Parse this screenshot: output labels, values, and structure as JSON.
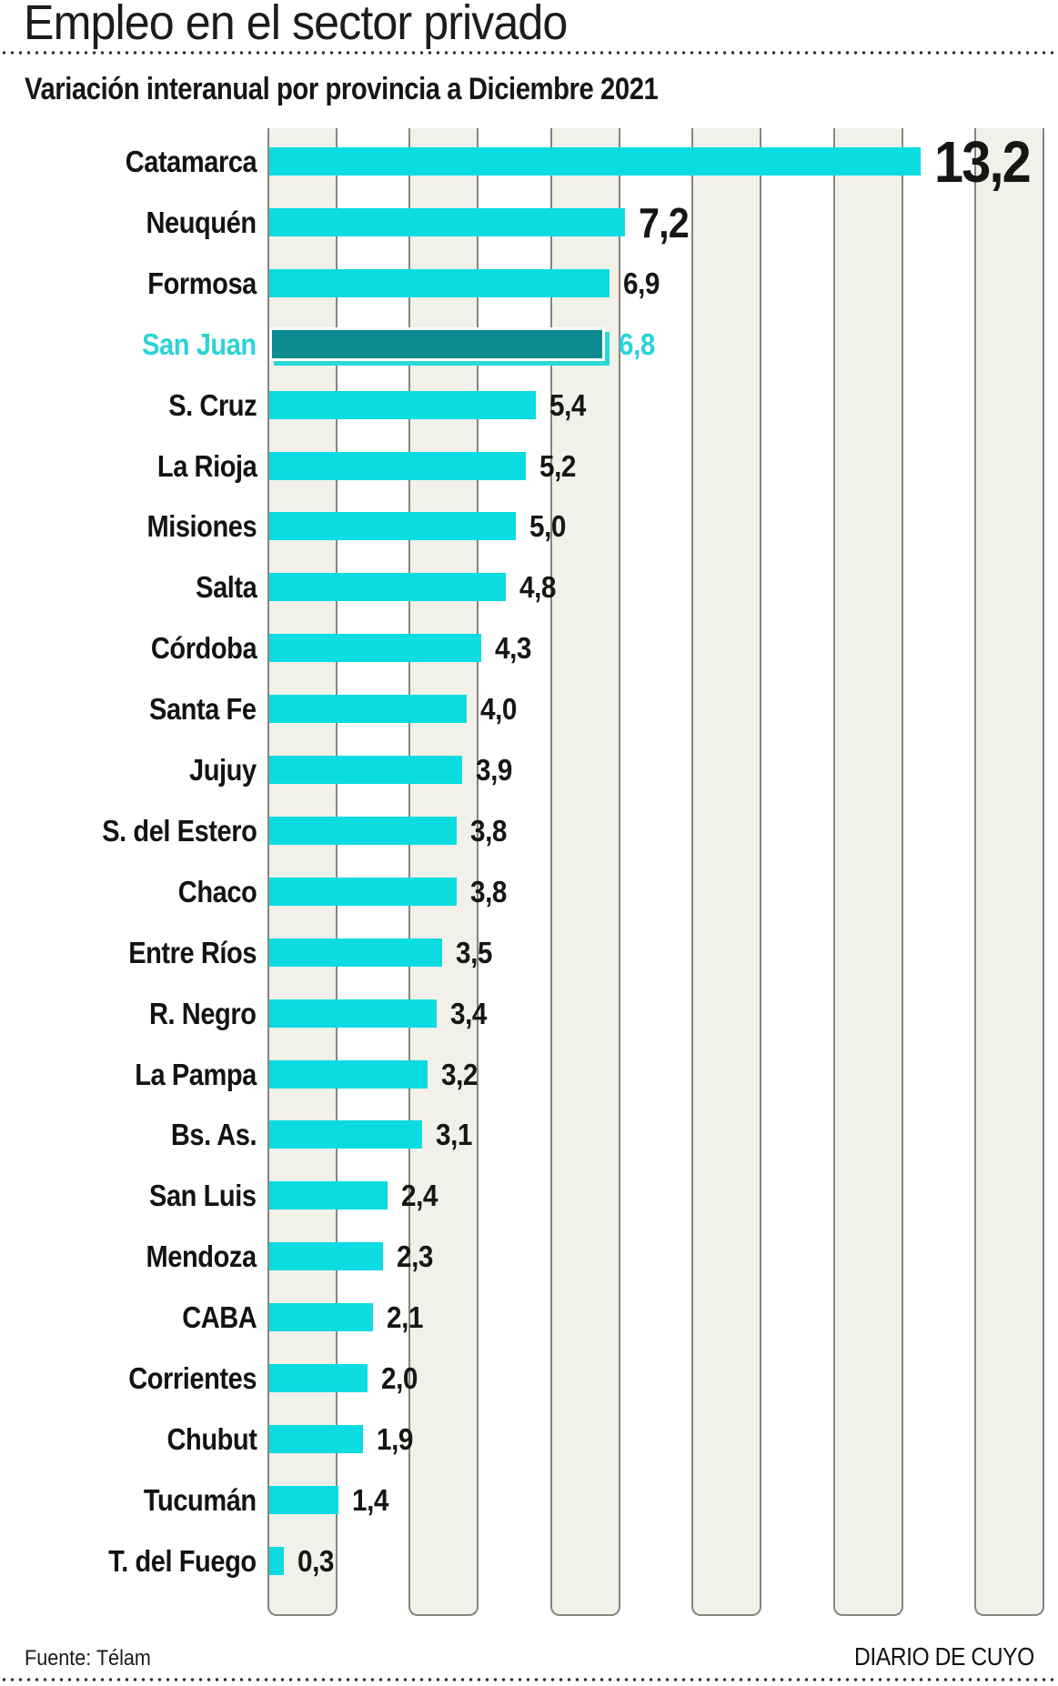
{
  "title": "Empleo en el sector privado",
  "subtitle": "Variación interanual por provincia a Diciembre 2021",
  "footer": {
    "source": "Fuente: Télam",
    "brand": "DIARIO DE CUYO"
  },
  "colors": {
    "bar_cyan": "#0bdce1",
    "highlight_bar_teal": "#0e8a91",
    "highlight_text_cyan": "#2bd3d8",
    "band_fill": "#f1f0e9",
    "band_border": "#85857e",
    "text": "#141412",
    "background": "#ffffff"
  },
  "chart_data": {
    "type": "bar",
    "orientation": "horizontal",
    "title": "Empleo en el sector privado",
    "subtitle": "Variación interanual por provincia a Diciembre 2021",
    "categories": [
      "Catamarca",
      "Neuquén",
      "Formosa",
      "San Juan",
      "S. Cruz",
      "La Rioja",
      "Misiones",
      "Salta",
      "Córdoba",
      "Santa Fe",
      "Jujuy",
      "S. del Estero",
      "Chaco",
      "Entre Ríos",
      "R. Negro",
      "La Pampa",
      "Bs. As.",
      "San Luis",
      "Mendoza",
      "CABA",
      "Corrientes",
      "Chubut",
      "Tucumán",
      "T. del Fuego"
    ],
    "values": [
      13.2,
      7.2,
      6.9,
      6.8,
      5.4,
      5.2,
      5.0,
      4.8,
      4.3,
      4.0,
      3.9,
      3.8,
      3.8,
      3.5,
      3.4,
      3.2,
      3.1,
      2.4,
      2.3,
      2.1,
      2.0,
      1.9,
      1.4,
      0.3
    ],
    "value_labels": [
      "13,2",
      "7,2",
      "6,9",
      "6,8",
      "5,4",
      "5,2",
      "5,0",
      "4,8",
      "4,3",
      "4,0",
      "3,9",
      "3,8",
      "3,8",
      "3,5",
      "3,4",
      "3,2",
      "3,1",
      "2,4",
      "2,3",
      "2,1",
      "2,0",
      "1,9",
      "1,4",
      "0,3"
    ],
    "highlight_category": "San Juan",
    "highlight_index": 3,
    "xlim": [
      0,
      15.8
    ],
    "sorted": "descending",
    "legend": "none",
    "grid": "vertical striped background bands, no tick labels",
    "value_label_position": "right of bar end"
  }
}
